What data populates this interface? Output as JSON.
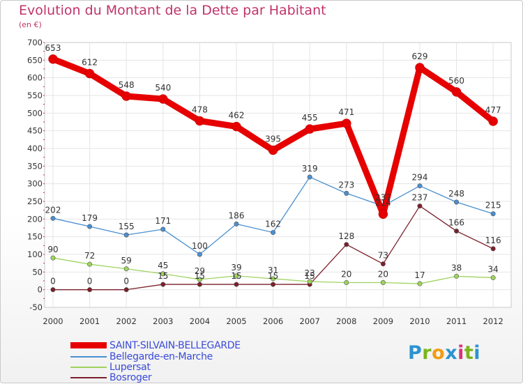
{
  "header": {
    "title": "Evolution du Montant de la Dette par Habitant",
    "subtitle": "(en €)"
  },
  "logo": {
    "text": "Proxiti",
    "colors": [
      "#2b93d1",
      "#7ab51d",
      "#f39c12",
      "#2b93d1",
      "#d6337a",
      "#7ab51d",
      "#2b93d1"
    ]
  },
  "chart_data": {
    "type": "line",
    "categories": [
      "2000",
      "2001",
      "2002",
      "2003",
      "2004",
      "2005",
      "2006",
      "2007",
      "2008",
      "2009",
      "2010",
      "2011",
      "2012"
    ],
    "ylim": [
      -50,
      700
    ],
    "yticks": [
      "-50",
      "0",
      "50",
      "100",
      "150",
      "200",
      "250",
      "300",
      "350",
      "400",
      "450",
      "500",
      "550",
      "600",
      "650",
      "700"
    ],
    "grid": true,
    "legend_position": "bottom-left",
    "series": [
      {
        "name": "SAINT-SILVAIN-BELLEGARDE",
        "color": "#e60000",
        "values": [
          653,
          612,
          548,
          540,
          478,
          462,
          395,
          455,
          471,
          214,
          629,
          560,
          477
        ],
        "labels": [
          "653",
          "612",
          "548",
          "540",
          "478",
          "462",
          "395",
          "455",
          "471",
          "214",
          "629",
          "560",
          "477"
        ]
      },
      {
        "name": "Bellegarde-en-Marche",
        "color": "#4a8fd0",
        "values": [
          202,
          179,
          155,
          171,
          100,
          186,
          162,
          319,
          273,
          237,
          294,
          248,
          215
        ],
        "labels": [
          "202",
          "179",
          "155",
          "171",
          "100",
          "186",
          "162",
          "319",
          "273",
          "237",
          "294",
          "248",
          "215"
        ]
      },
      {
        "name": "Lupersat",
        "color": "#9ed35e",
        "values": [
          90,
          72,
          59,
          45,
          29,
          39,
          31,
          23,
          20,
          20,
          17,
          38,
          34
        ],
        "labels": [
          "90",
          "72",
          "59",
          "45",
          "29",
          "39",
          "31",
          "23",
          "20",
          "20",
          "17",
          "38",
          "34"
        ]
      },
      {
        "name": "Bosroger",
        "color": "#7b1f2a",
        "values": [
          0,
          0,
          0,
          15,
          15,
          15,
          15,
          15,
          128,
          73,
          237,
          166,
          116
        ],
        "labels": [
          "0",
          "0",
          "0",
          "15",
          "15",
          "15",
          "15",
          "15",
          "128",
          "73",
          "237",
          "166",
          "116"
        ]
      }
    ]
  }
}
